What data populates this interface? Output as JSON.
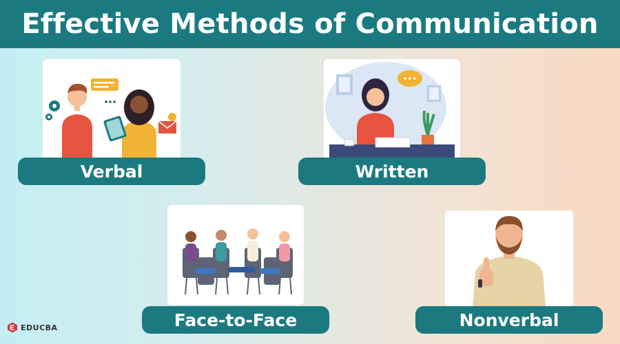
{
  "title": "Effective Methods of Communication",
  "colors": {
    "header_bg": "#1b7a80",
    "pill_bg": "#1b7a80",
    "text_light": "#ffffff",
    "brand_red": "#d9363e"
  },
  "methods": [
    {
      "label": "Verbal",
      "illustration": "two-people-talking-illustration"
    },
    {
      "label": "Written",
      "illustration": "woman-writing-at-desk-illustration"
    },
    {
      "label": "Face-to-Face",
      "illustration": "group-meeting-in-circle-illustration"
    },
    {
      "label": "Nonverbal",
      "illustration": "man-thumbs-up-illustration"
    }
  ],
  "logo": {
    "text": "EDUCBA",
    "icon": "educba-logo-icon"
  }
}
